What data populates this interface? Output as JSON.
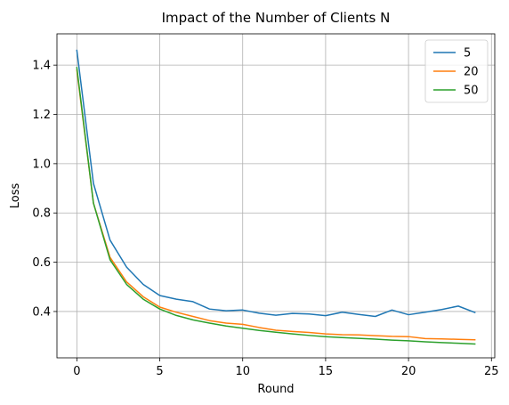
{
  "chart_data": {
    "type": "line",
    "title": "Impact of the Number of Clients N",
    "xlabel": "Round",
    "ylabel": "Loss",
    "xlim": [
      -1.2,
      25.2
    ],
    "ylim": [
      0.212,
      1.527
    ],
    "xticks": [
      0,
      5,
      10,
      15,
      20,
      25
    ],
    "xtick_labels": [
      "0",
      "5",
      "10",
      "15",
      "20",
      "25"
    ],
    "yticks": [
      0.4,
      0.6,
      0.8,
      1.0,
      1.2,
      1.4
    ],
    "ytick_labels": [
      "0.4",
      "0.6",
      "0.8",
      "1.0",
      "1.2",
      "1.4"
    ],
    "grid": true,
    "legend_position": "top-right",
    "x": [
      0,
      1,
      2,
      3,
      4,
      5,
      6,
      7,
      8,
      9,
      10,
      11,
      12,
      13,
      14,
      15,
      16,
      17,
      18,
      19,
      20,
      21,
      22,
      23,
      24
    ],
    "series": [
      {
        "name": "5",
        "color": "#1f77b4",
        "values": [
          1.46,
          0.92,
          0.69,
          0.58,
          0.51,
          0.465,
          0.45,
          0.44,
          0.41,
          0.403,
          0.406,
          0.393,
          0.385,
          0.392,
          0.39,
          0.383,
          0.397,
          0.388,
          0.38,
          0.406,
          0.387,
          0.397,
          0.408,
          0.422,
          0.396
        ]
      },
      {
        "name": "20",
        "color": "#ff7f0e",
        "values": [
          1.38,
          0.84,
          0.62,
          0.52,
          0.46,
          0.418,
          0.397,
          0.38,
          0.363,
          0.353,
          0.348,
          0.335,
          0.324,
          0.319,
          0.315,
          0.309,
          0.306,
          0.305,
          0.302,
          0.299,
          0.298,
          0.29,
          0.289,
          0.287,
          0.285
        ]
      },
      {
        "name": "50",
        "color": "#2ca02c",
        "values": [
          1.39,
          0.84,
          0.61,
          0.51,
          0.45,
          0.41,
          0.384,
          0.366,
          0.353,
          0.341,
          0.332,
          0.323,
          0.316,
          0.309,
          0.303,
          0.298,
          0.294,
          0.291,
          0.288,
          0.284,
          0.281,
          0.277,
          0.274,
          0.271,
          0.268
        ]
      }
    ]
  }
}
